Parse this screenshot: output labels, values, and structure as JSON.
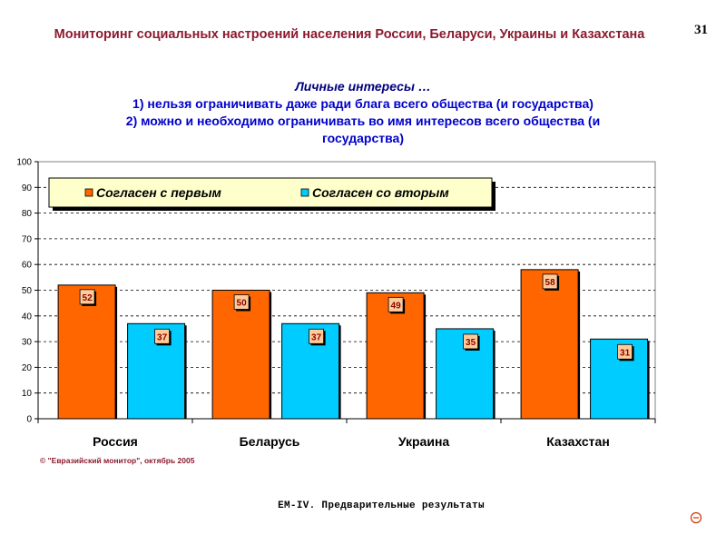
{
  "header": {
    "title": "Мониторинг социальных настроений населения России, Беларуси, Украины и Казахстана",
    "page_number": "31"
  },
  "chart_data": {
    "type": "bar",
    "title_lines": [
      "Личные интересы …",
      "1) нельзя ограничивать даже ради блага всего общества (и государства)",
      "2) можно и необходимо ограничивать во имя интересов всего общества (и",
      "государства)"
    ],
    "categories": [
      "Россия",
      "Беларусь",
      "Украина",
      "Казахстан"
    ],
    "series": [
      {
        "name": "Согласен с первым",
        "values": [
          52,
          50,
          49,
          58
        ],
        "color": "#ff6600"
      },
      {
        "name": "Согласен со вторым",
        "values": [
          37,
          37,
          35,
          31
        ],
        "color": "#00ccff"
      }
    ],
    "ylim": [
      0,
      100
    ],
    "yticks": [
      0,
      10,
      20,
      30,
      40,
      50,
      60,
      70,
      80,
      90,
      100
    ],
    "grid": true,
    "legend_position": "top"
  },
  "source_note": "© \"Евразийский монитор\", октябрь 2005",
  "footer": "ЕМ-IV. Предварительные результаты",
  "colors": {
    "header_text": "#8b1a2e",
    "title_text": "#0000cc",
    "data_label_fill": "#ffcc99",
    "data_label_text": "#8b0000"
  },
  "icons": {
    "corner": "circle-minus-icon"
  }
}
